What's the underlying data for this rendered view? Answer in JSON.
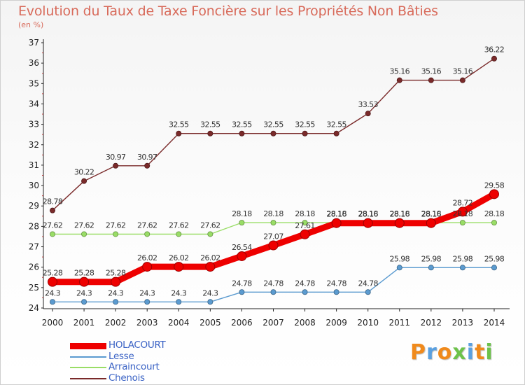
{
  "chart_data": {
    "type": "line",
    "title": "Evolution du Taux de Taxe Foncière sur les Propriétés Non Bâties",
    "subtitle": "(en %)",
    "xlabel": "",
    "ylabel": "",
    "ylim": [
      24,
      37
    ],
    "yticks": [
      24,
      25,
      26,
      27,
      28,
      29,
      30,
      31,
      32,
      33,
      34,
      35,
      36,
      37
    ],
    "categories": [
      "2000",
      "2001",
      "2002",
      "2003",
      "2004",
      "2005",
      "2006",
      "2007",
      "2008",
      "2009",
      "2010",
      "2011",
      "2012",
      "2013",
      "2014"
    ],
    "series": [
      {
        "name": "HOLACOURT",
        "color": "#ee0000",
        "values": [
          25.28,
          25.28,
          25.28,
          26.02,
          26.02,
          26.02,
          26.54,
          27.07,
          27.61,
          28.16,
          28.16,
          28.16,
          28.16,
          28.72,
          29.58
        ],
        "labels": [
          "25.28",
          "25.28",
          "25.28",
          "26.02",
          "26.02",
          "26.02",
          "26.54",
          "27.07",
          "27.61",
          "28.16",
          "28.16",
          "28.16",
          "28.16",
          "28.72",
          "29.58"
        ]
      },
      {
        "name": "Lesse",
        "color": "#5b9bd0",
        "values": [
          24.3,
          24.3,
          24.3,
          24.3,
          24.3,
          24.3,
          24.78,
          24.78,
          24.78,
          24.78,
          24.78,
          25.98,
          25.98,
          25.98,
          25.98
        ],
        "labels": [
          "24.3",
          "24.3",
          "24.3",
          "24.3",
          "24.3",
          "24.3",
          "24.78",
          "24.78",
          "24.78",
          "24.78",
          "24.78",
          "25.98",
          "25.98",
          "25.98",
          "25.98"
        ]
      },
      {
        "name": "Arraincourt",
        "color": "#99dd66",
        "values": [
          27.62,
          27.62,
          27.62,
          27.62,
          27.62,
          27.62,
          28.18,
          28.18,
          28.18,
          28.18,
          28.18,
          28.18,
          28.18,
          28.18,
          28.18
        ],
        "labels": [
          "27.62",
          "27.62",
          "27.62",
          "27.62",
          "27.62",
          "27.62",
          "28.18",
          "28.18",
          "28.18",
          "28.18",
          "28.18",
          "28.18",
          "28.18",
          "28.18",
          "28.18"
        ]
      },
      {
        "name": "Chenois",
        "color": "#7a2a2a",
        "values": [
          28.78,
          30.22,
          30.97,
          30.97,
          32.55,
          32.55,
          32.55,
          32.55,
          32.55,
          32.55,
          33.53,
          35.16,
          35.16,
          35.16,
          36.22
        ],
        "labels": [
          "28.78",
          "30.22",
          "30.97",
          "30.97",
          "32.55",
          "32.55",
          "32.55",
          "32.55",
          "32.55",
          "32.55",
          "33.53",
          "35.16",
          "35.16",
          "35.16",
          "36.22"
        ]
      }
    ],
    "legend_position": "bottom-left"
  },
  "logo": {
    "letters": [
      "P",
      "r",
      "o",
      "x",
      "i",
      "t",
      "i"
    ],
    "colors": [
      "#f08a1c",
      "#5aa0e0",
      "#f08a1c",
      "#6cc24a",
      "#5aa0e0",
      "#f08a1c",
      "#6cc24a"
    ]
  }
}
